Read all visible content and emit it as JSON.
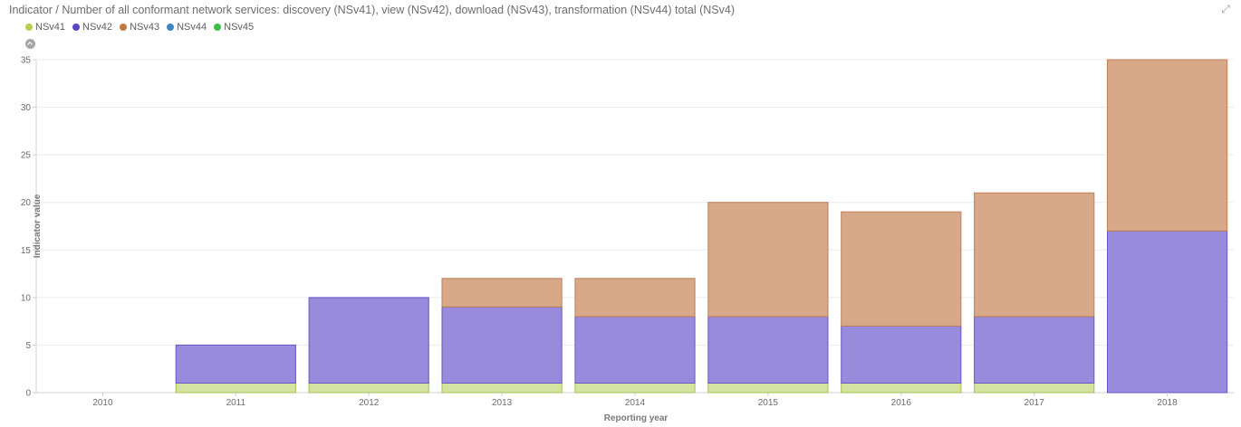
{
  "header": {
    "title": "Indicator / Number of all conformant network services: discovery (NSv41), view (NSv42), download (NSv43), transformation (NSv44) total (NSv4)",
    "expand_icon": "expand-icon"
  },
  "legend": [
    {
      "label": "NSv41",
      "color": "#b5cf4e"
    },
    {
      "label": "NSv42",
      "color": "#5b45c2"
    },
    {
      "label": "NSv43",
      "color": "#c27a43"
    },
    {
      "label": "NSv44",
      "color": "#3f86c4"
    },
    {
      "label": "NSv45",
      "color": "#3cbf49"
    }
  ],
  "chart_data": {
    "type": "bar",
    "stacked": true,
    "title": "Indicator / Number of all conformant network services: discovery (NSv41), view (NSv42), download (NSv43), transformation (NSv44) total (NSv4)",
    "xlabel": "Reporting year",
    "ylabel": "Indicator value",
    "categories": [
      "2010",
      "2011",
      "2012",
      "2013",
      "2014",
      "2015",
      "2016",
      "2017",
      "2018"
    ],
    "ylim": [
      0,
      35
    ],
    "yticks": [
      0,
      5,
      10,
      15,
      20,
      25,
      30,
      35
    ],
    "grid": true,
    "legend_position": "top-left",
    "series": [
      {
        "name": "NSv41",
        "values": [
          0,
          1,
          1,
          1,
          1,
          1,
          1,
          1,
          0
        ],
        "fill": "#d5e3a2",
        "stroke": "#a7c34a"
      },
      {
        "name": "NSv42",
        "values": [
          0,
          4,
          9,
          8,
          7,
          7,
          6,
          7,
          17
        ],
        "fill": "#988bdb",
        "stroke": "#6a57c9"
      },
      {
        "name": "NSv43",
        "values": [
          0,
          0,
          0,
          3,
          4,
          12,
          12,
          13,
          18
        ],
        "fill": "#d8a988",
        "stroke": "#bf7f58"
      },
      {
        "name": "NSv44",
        "values": [
          0,
          0,
          0,
          0,
          0,
          0,
          0,
          0,
          0
        ],
        "fill": "#9cc3e6",
        "stroke": "#3f86c4"
      },
      {
        "name": "NSv45",
        "values": [
          0,
          0,
          0,
          0,
          0,
          0,
          0,
          0,
          0
        ],
        "fill": "#9fe0a6",
        "stroke": "#3cbf49"
      }
    ]
  }
}
